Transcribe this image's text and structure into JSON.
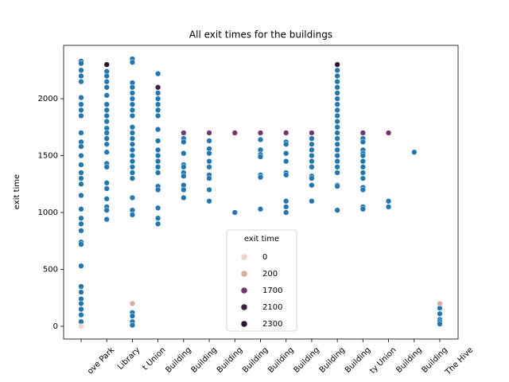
{
  "chart_data": {
    "type": "scatter",
    "title": "All exit times for the buildings",
    "ylabel": "exit time",
    "categories": [
      "ove Park",
      "Library",
      "t Union",
      "Building",
      "Building",
      "Building",
      "Building",
      "Building",
      "Building",
      "Building",
      "Building",
      "ty Union",
      "Building",
      "Building",
      "The Hive"
    ],
    "ylim": [
      -112,
      2469
    ],
    "yticks": [
      0,
      500,
      1000,
      1500,
      2000
    ],
    "legend_title": "exit time",
    "series": [
      {
        "color": "#1f77b4",
        "x": [
          0,
          0,
          0,
          0,
          0,
          0,
          0,
          0,
          0,
          0,
          0,
          0,
          0,
          0,
          0,
          0,
          0,
          0,
          0,
          0,
          0,
          0,
          0,
          0,
          0,
          0,
          0,
          0,
          0,
          0,
          0,
          0,
          1,
          1,
          1,
          1,
          1,
          1,
          1,
          1,
          1,
          1,
          1,
          1,
          1,
          1,
          1,
          1,
          1,
          1,
          1,
          1,
          1,
          1,
          1,
          2,
          2,
          2,
          2,
          2,
          2,
          2,
          2,
          2,
          2,
          2,
          2,
          2,
          2,
          2,
          2,
          2,
          2,
          2,
          2,
          2,
          2,
          2,
          2,
          2,
          2,
          3,
          3,
          3,
          3,
          3,
          3,
          3,
          3,
          3,
          3,
          3,
          3,
          3,
          3,
          3,
          3,
          3,
          3,
          4,
          4,
          4,
          4,
          4,
          4,
          4,
          4,
          4,
          4,
          5,
          5,
          5,
          5,
          5,
          5,
          5,
          5,
          5,
          6,
          7,
          7,
          7,
          7,
          7,
          7,
          7,
          8,
          8,
          8,
          8,
          8,
          8,
          8,
          8,
          8,
          9,
          9,
          9,
          9,
          9,
          9,
          9,
          9,
          9,
          9,
          10,
          10,
          10,
          10,
          10,
          10,
          10,
          10,
          10,
          10,
          10,
          10,
          10,
          10,
          10,
          10,
          10,
          10,
          10,
          10,
          10,
          10,
          11,
          11,
          11,
          11,
          11,
          11,
          11,
          11,
          11,
          11,
          11,
          11,
          11,
          12,
          12,
          13,
          14,
          14,
          14,
          14,
          14
        ],
        "values": [
          2330,
          2310,
          2250,
          2200,
          2150,
          2010,
          1950,
          1900,
          1850,
          1700,
          1620,
          1580,
          1500,
          1420,
          1350,
          1300,
          1250,
          1150,
          1030,
          950,
          900,
          840,
          740,
          720,
          530,
          350,
          300,
          240,
          200,
          150,
          100,
          40,
          2300,
          2240,
          2200,
          2150,
          2100,
          2030,
          1950,
          1900,
          1850,
          1800,
          1740,
          1700,
          1650,
          1600,
          1530,
          1430,
          1400,
          1260,
          1210,
          1120,
          1050,
          1020,
          940,
          2350,
          2320,
          2140,
          2100,
          2050,
          2000,
          1950,
          1900,
          1850,
          1750,
          1700,
          1650,
          1600,
          1550,
          1500,
          1450,
          1400,
          1350,
          1300,
          1130,
          1020,
          980,
          120,
          90,
          40,
          10,
          2220,
          2050,
          2000,
          1950,
          1900,
          1850,
          1730,
          1630,
          1550,
          1500,
          1450,
          1400,
          1350,
          1230,
          1200,
          1040,
          950,
          900,
          1650,
          1620,
          1520,
          1420,
          1400,
          1350,
          1320,
          1240,
          1200,
          1130,
          1630,
          1560,
          1520,
          1450,
          1400,
          1330,
          1300,
          1200,
          1100,
          1000,
          1640,
          1550,
          1510,
          1490,
          1330,
          1310,
          1030,
          1620,
          1600,
          1520,
          1450,
          1350,
          1330,
          1100,
          1050,
          1000,
          1650,
          1600,
          1550,
          1500,
          1450,
          1400,
          1320,
          1300,
          1240,
          1100,
          2250,
          2200,
          2150,
          2100,
          2050,
          2000,
          1950,
          1900,
          1850,
          1800,
          1750,
          1700,
          1650,
          1600,
          1550,
          1500,
          1450,
          1400,
          1350,
          1240,
          1230,
          1020,
          1650,
          1620,
          1550,
          1520,
          1500,
          1450,
          1400,
          1350,
          1300,
          1220,
          1200,
          1050,
          1030,
          1100,
          1050,
          1530,
          160,
          110,
          60,
          40,
          20
        ]
      },
      {
        "name": "0",
        "color": "#ecd2cb",
        "x": [
          0
        ],
        "values": [
          0
        ]
      },
      {
        "name": "200",
        "color": "#dba8a3",
        "x": [
          2,
          14
        ],
        "values": [
          200,
          200
        ]
      },
      {
        "name": "1700",
        "color": "#71386f",
        "x": [
          4,
          5,
          6,
          7,
          8,
          9,
          11,
          12
        ],
        "values": [
          1700,
          1700,
          1700,
          1700,
          1700,
          1700,
          1700,
          1700
        ]
      },
      {
        "name": "2100",
        "color": "#3e1f42",
        "x": [
          3
        ],
        "values": [
          2100
        ]
      },
      {
        "name": "2300",
        "color": "#2b1634",
        "x": [
          1,
          10
        ],
        "values": [
          2300,
          2300
        ]
      }
    ]
  }
}
